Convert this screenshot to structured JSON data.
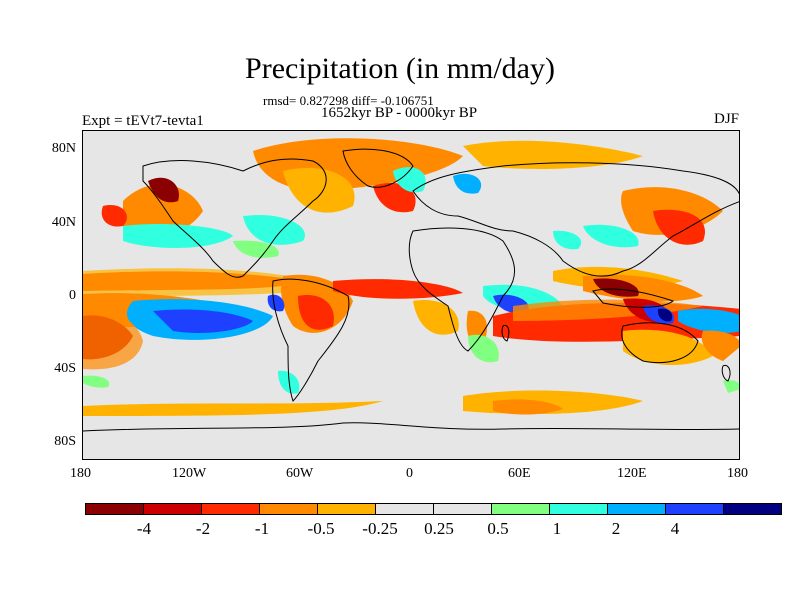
{
  "header": {
    "title": "Precipitation (in mm/day)",
    "stats": "rmsd= 0.827298 diff= -0.106751",
    "period": "1652kyr BP - 0000kyr BP",
    "experiment": "Expt = tEVt7-tevta1",
    "season": "DJF"
  },
  "axes": {
    "y_ticks": [
      "80N",
      "40N",
      "0",
      "40S",
      "80S"
    ],
    "x_ticks": [
      "180",
      "120W",
      "60W",
      "0",
      "60E",
      "120E",
      "180"
    ]
  },
  "colorbar": {
    "colors": [
      "#8b0000",
      "#cc0000",
      "#ff2a00",
      "#ff8a00",
      "#ffb300",
      "#e6e6e6",
      "#e6e6e6",
      "#80ff80",
      "#30ffe0",
      "#00b0ff",
      "#1e40ff",
      "#000080"
    ],
    "labels": [
      "-4",
      "-2",
      "-1",
      "-0.5",
      "-0.25",
      "0.25",
      "0.5",
      "1",
      "2",
      "4"
    ]
  }
}
